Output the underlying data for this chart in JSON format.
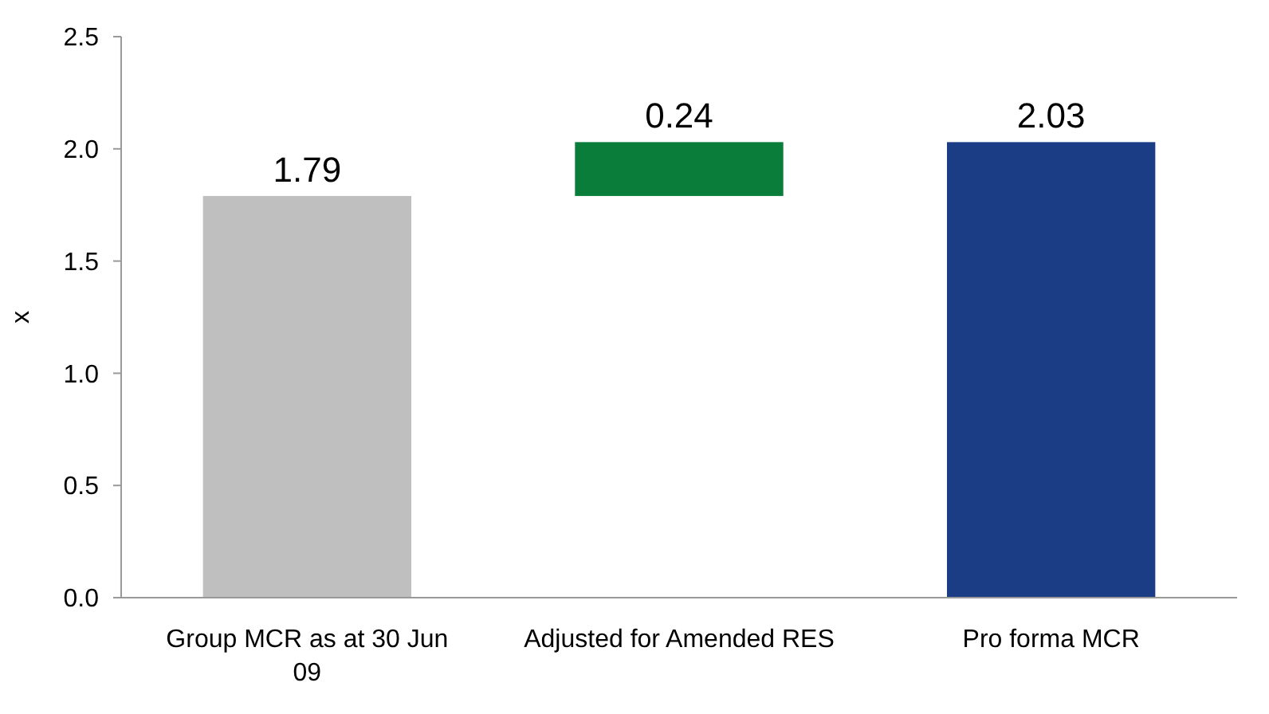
{
  "chart_data": {
    "type": "bar",
    "ylabel": "x",
    "categories": [
      "Group MCR as at 30 Jun 09",
      "Adjusted for Amended RES",
      "Pro forma MCR"
    ],
    "values": [
      1.79,
      0.24,
      2.03
    ],
    "base": [
      0,
      1.79,
      0
    ],
    "colors": [
      "#bfbfbf",
      "#0a7d3b",
      "#1b3d85"
    ],
    "data_labels": true,
    "ylim": [
      0,
      2.5
    ],
    "yticks": [
      {
        "value": 0,
        "label": "0.0"
      },
      {
        "value": 0.5,
        "label": "0.5"
      },
      {
        "value": 1,
        "label": "1.0"
      },
      {
        "value": 1.5,
        "label": "1.5"
      },
      {
        "value": 2,
        "label": "2.0"
      },
      {
        "value": 2.5,
        "label": "2.5"
      }
    ],
    "grid": false
  }
}
